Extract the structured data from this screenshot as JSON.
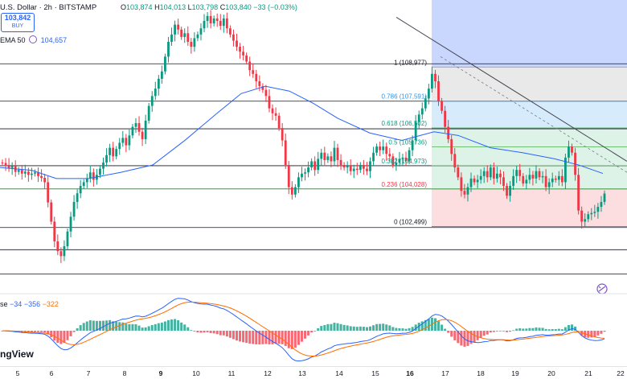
{
  "header": {
    "title": "U.S. Dollar · 2h · BITSTAMP",
    "ohlc": [
      {
        "k": "O",
        "v": "103,874"
      },
      {
        "k": "H",
        "v": "104,013"
      },
      {
        "k": "L",
        "v": "103,798"
      },
      {
        "k": "C",
        "v": "103,840"
      }
    ],
    "change": "−33 (−0.03%)",
    "price_box": {
      "price": "103,842",
      "label": "BUY"
    },
    "ema_label": "EMA 50",
    "ema_value": "104,657"
  },
  "macd_header": {
    "name": "se",
    "v1": "−34",
    "v2": "−356",
    "v3": "−322"
  },
  "brand": "ngView",
  "colors": {
    "up": "#089981",
    "down": "#f23645",
    "ema": "#2962ff",
    "macd": "#2962ff",
    "signal": "#ff6d00",
    "fib_1": "#e5e5e5",
    "fib_0786": "#cfe8fb",
    "fib_0618": "#d8f1e4",
    "fib_0236": "#fcd8dc",
    "top_band": "#c9d6fd"
  },
  "chart_data": {
    "type": "candlestick",
    "x_ticks": [
      "5",
      "6",
      "7",
      "8",
      "9",
      "10",
      "11",
      "12",
      "13",
      "14",
      "15",
      "16",
      "17",
      "18",
      "19",
      "20",
      "21",
      "22"
    ],
    "bold_ticks": [
      "9",
      "16"
    ],
    "x_last_tick_partial": "22",
    "horizontal_levels_dark": [
      109110,
      107590,
      106470,
      104970,
      104030,
      102460,
      101560,
      100570
    ],
    "fib_levels": [
      {
        "ratio": "1",
        "price": "108,977",
        "value": 108977
      },
      {
        "ratio": "0.786",
        "price": "107,591",
        "value": 107591
      },
      {
        "ratio": "0.618",
        "price": "106,502",
        "value": 106502
      },
      {
        "ratio": "0.5",
        "price": "105,736",
        "value": 105736
      },
      {
        "ratio": "0.382",
        "price": "104,973",
        "value": 104973
      },
      {
        "ratio": "0.236",
        "price": "104,028",
        "value": 104028
      },
      {
        "ratio": "0",
        "price": "102,499",
        "value": 102499
      }
    ],
    "fib_labels": [
      "1 (108,977)",
      "0.786 (107,591)",
      "0.618 (106,502)",
      "0.5 (105,736)",
      "0.382 (104,973)",
      "0.236 (104,028)",
      "0 (102,499)"
    ],
    "closes": [
      105080,
      105000,
      104880,
      104950,
      104720,
      104800,
      104650,
      104730,
      104600,
      104650,
      104700,
      104550,
      104480,
      104300,
      103480,
      102700,
      101900,
      101500,
      101300,
      101700,
      102300,
      102900,
      103500,
      103850,
      104150,
      104300,
      104450,
      104700,
      104400,
      104600,
      104850,
      105100,
      105400,
      105700,
      105350,
      105650,
      105900,
      106100,
      105800,
      106200,
      106550,
      106700,
      106350,
      106050,
      106800,
      107400,
      107800,
      108100,
      108500,
      108800,
      109400,
      110000,
      110300,
      110700,
      110500,
      110200,
      110350,
      110000,
      109800,
      110150,
      110300,
      110550,
      110850,
      111050,
      110750,
      110950,
      110850,
      110650,
      110950,
      110550,
      110300,
      110050,
      109800,
      109600,
      109450,
      109200,
      108850,
      108700,
      108400,
      108200,
      108050,
      107800,
      107300,
      107100,
      107000,
      106500,
      106000,
      105000,
      104100,
      103800,
      104100,
      104500,
      104650,
      104700,
      104900,
      105150,
      104800,
      105250,
      105500,
      105200,
      105350,
      105150,
      105700,
      105200,
      105000,
      104900,
      104950,
      104750,
      104850,
      104800,
      105000,
      104850,
      104750,
      105150,
      105500,
      105750,
      105600,
      105750,
      105450,
      105350,
      105000,
      105100,
      105250,
      105300,
      105150,
      105600,
      106000,
      106750,
      107050,
      107300,
      107700,
      108100,
      108700,
      108400,
      107600,
      107200,
      106550,
      106050,
      105450,
      104900,
      104500,
      103950,
      103800,
      104100,
      104450,
      104300,
      104400,
      104550,
      104750,
      104500,
      104900,
      104450,
      104650,
      104500,
      104150,
      103750,
      104150,
      104550,
      104800,
      104550,
      104250,
      104400,
      104600,
      104450,
      104750,
      104500,
      104550,
      104100,
      104300,
      104450,
      104400,
      104550,
      104300,
      105300,
      105750,
      105500,
      104600,
      103150,
      102700,
      102800,
      103000,
      103050,
      103100,
      103300,
      103500,
      103840
    ],
    "ema50_path_points": [
      [
        0,
        104900
      ],
      [
        40,
        104780
      ],
      [
        70,
        104450
      ],
      [
        110,
        104450
      ],
      [
        150,
        104700
      ],
      [
        190,
        105000
      ],
      [
        230,
        106000
      ],
      [
        270,
        107100
      ],
      [
        300,
        107900
      ],
      [
        330,
        108200
      ],
      [
        360,
        108000
      ],
      [
        390,
        107500
      ],
      [
        420,
        106900
      ],
      [
        460,
        106300
      ],
      [
        500,
        106000
      ],
      [
        540,
        106350
      ],
      [
        570,
        106200
      ],
      [
        610,
        105700
      ],
      [
        650,
        105500
      ],
      [
        690,
        105250
      ],
      [
        720,
        105000
      ],
      [
        750,
        104657
      ]
    ],
    "trendline": {
      "from": [
        493,
        111000
      ],
      "to": [
        780,
        105150
      ]
    },
    "macd_panel": {
      "histogram": "green above zero from day 8 to day 10 and day 16-17; red below zero days 5, 12-13, 17-18, 21",
      "macd_line_color": "#2962ff",
      "signal_line_color": "#ff6d00"
    },
    "title": "U.S. Dollar · 2h · BITSTAMP",
    "xlabel": "",
    "ylabel": ""
  }
}
